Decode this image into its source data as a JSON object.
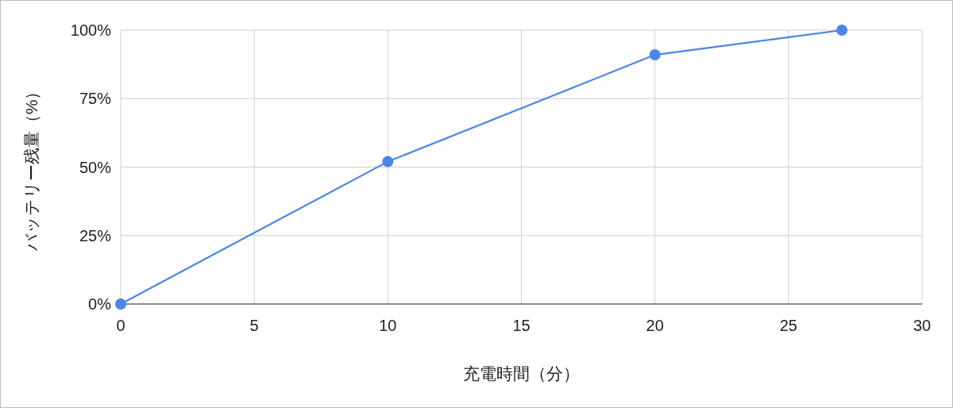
{
  "chart_data": {
    "type": "line",
    "xlabel": "充電時間（分）",
    "ylabel": "バッテリー残量（%）",
    "x": [
      0,
      10,
      20,
      27
    ],
    "series": [
      {
        "color": "#4a86e8",
        "values": [
          0,
          52,
          91,
          100
        ]
      }
    ],
    "xlim": [
      0,
      30
    ],
    "xticks": [
      0,
      5,
      10,
      15,
      20,
      25,
      30
    ],
    "ylim": [
      0,
      100
    ],
    "yticks": [
      {
        "value": 0,
        "label": "0%"
      },
      {
        "value": 25,
        "label": "25%"
      },
      {
        "value": 50,
        "label": "50%"
      },
      {
        "value": 75,
        "label": "75%"
      },
      {
        "value": 100,
        "label": "100%"
      }
    ],
    "grid": true,
    "marker": "circle",
    "line_style": "solid"
  }
}
